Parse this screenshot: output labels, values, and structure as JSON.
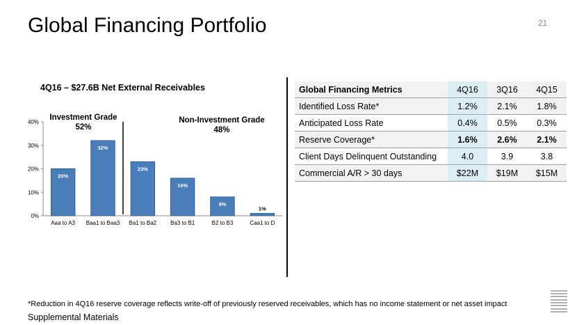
{
  "slide": {
    "title": "Global Financing Portfolio",
    "page_number": "21",
    "footnote": "*Reduction in 4Q16 reserve coverage reflects write-off of previously reserved receivables, which has no income statement or net asset impact",
    "footer": "Supplemental Materials",
    "logo_text": "IBM"
  },
  "chart_data": {
    "type": "bar",
    "title": "4Q16 – $27.6B Net External Receivables",
    "categories": [
      "Aaa to A3",
      "Baa1 to Baa3",
      "Ba1 to Ba2",
      "Ba3 to B1",
      "B2 to B3",
      "Caa1 to D"
    ],
    "values": [
      20,
      32,
      23,
      16,
      8,
      1
    ],
    "data_labels": [
      "20%",
      "32%",
      "23%",
      "16%",
      "8%",
      "1%"
    ],
    "ylim": [
      0,
      40
    ],
    "yticks": [
      "0%",
      "10%",
      "20%",
      "30%",
      "40%"
    ],
    "ytick_values": [
      0,
      10,
      20,
      30,
      40
    ],
    "bar_color": "#4a7ebb",
    "groups": [
      {
        "name": "Investment Grade",
        "value": "52%"
      },
      {
        "name": "Non-Investment Grade",
        "value": "48%"
      }
    ]
  },
  "metrics_table": {
    "title": "Global Financing Metrics",
    "columns": [
      "4Q16",
      "3Q16",
      "4Q15"
    ],
    "rows": [
      {
        "label": "Identified Loss Rate*",
        "values": [
          "1.2%",
          "2.1%",
          "1.8%"
        ]
      },
      {
        "label": "Anticipated Loss Rate",
        "values": [
          "0.4%",
          "0.5%",
          "0.3%"
        ]
      },
      {
        "label": "Reserve Coverage*",
        "values": [
          "1.6%",
          "2.6%",
          "2.1%"
        ]
      },
      {
        "label": "Client Days Delinquent Outstanding",
        "values": [
          "4.0",
          "3.9",
          "3.8"
        ]
      },
      {
        "label": "Commercial A/R > 30 days",
        "values": [
          "$22M",
          "$19M",
          "$15M"
        ]
      }
    ],
    "highlight_color": "#dbeef4"
  }
}
